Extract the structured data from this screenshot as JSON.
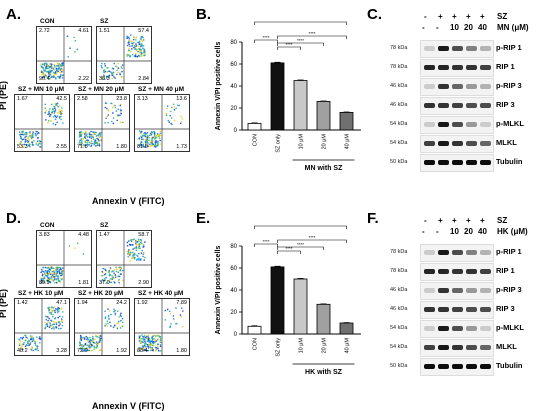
{
  "panels": {
    "A": {
      "letter": "A.",
      "ylabel": "PI (PE)",
      "xlabel": "Annexin V (FITC)",
      "plots": [
        {
          "title": "CON",
          "q": [
            "2.72",
            "4.61",
            "90.4",
            "2.22"
          ]
        },
        {
          "title": "SZ",
          "q": [
            "1.51",
            "57.4",
            "38.3",
            "2.84"
          ]
        },
        {
          "title": "SZ + MN 10 μM",
          "q": [
            "1.67",
            "42.5",
            "53.3",
            "2.55"
          ]
        },
        {
          "title": "SZ + MN 20 μM",
          "q": [
            "2.58",
            "23.8",
            "71.8",
            "1.80"
          ]
        },
        {
          "title": "SZ + MN 40 μM",
          "q": [
            "3.13",
            "13.6",
            "81.5",
            "1.73"
          ]
        }
      ]
    },
    "D": {
      "letter": "D.",
      "ylabel": "PI (PE)",
      "xlabel": "Annexin V (FITC)",
      "plots": [
        {
          "title": "CON",
          "q": [
            "3.83",
            "4.48",
            "89.9",
            "1.81"
          ]
        },
        {
          "title": "SZ",
          "q": [
            "1.47",
            "58.7",
            "37.0",
            "2.90"
          ]
        },
        {
          "title": "SZ + HK 10 μM",
          "q": [
            "1.42",
            "47.1",
            "48.2",
            "3.28"
          ]
        },
        {
          "title": "SZ + HK 20 μM",
          "q": [
            "1.94",
            "24.2",
            "72.0",
            "1.92"
          ]
        },
        {
          "title": "SZ + HK 40 μM",
          "q": [
            "1.92",
            "7.89",
            "88.4",
            "1.80"
          ]
        }
      ]
    },
    "B": {
      "letter": "B.",
      "group_label": "MN with SZ",
      "sig": [
        "****",
        "****",
        "****",
        "****",
        "****"
      ]
    },
    "E": {
      "letter": "E.",
      "group_label": "HK with SZ",
      "sig": [
        "****",
        "****",
        "****",
        "****",
        "****"
      ]
    },
    "C": {
      "letter": "C.",
      "treat": "MN (μM)"
    },
    "F": {
      "letter": "F.",
      "treat": "HK (μM)"
    }
  },
  "blot_header": {
    "sz": "SZ",
    "signs": [
      "-",
      "+",
      "+",
      "+",
      "+"
    ],
    "signs2": [
      "-",
      "-",
      "10",
      "20",
      "40"
    ]
  },
  "blot_rows": [
    {
      "kda": "78 kDa",
      "label": "p-RIP 1"
    },
    {
      "kda": "78 kDa",
      "label": "RIP 1"
    },
    {
      "kda": "46 kDa",
      "label": "p-RIP 3"
    },
    {
      "kda": "46 kDa",
      "label": "RIP 3"
    },
    {
      "kda": "54 kDa",
      "label": "p-MLKL"
    },
    {
      "kda": "54 kDa",
      "label": "MLKL"
    },
    {
      "kda": "50 kDa",
      "label": "Tubulin"
    }
  ],
  "chart_data": [
    {
      "type": "bar",
      "panel": "B",
      "categories": [
        "CON",
        "SZ only",
        "10 μM",
        "20 μM",
        "40 μM"
      ],
      "values": [
        6,
        61,
        45,
        26,
        16
      ],
      "errors": [
        0.5,
        0.6,
        0.5,
        0.4,
        0.4
      ],
      "colors": [
        "#ffffff",
        "#111111",
        "#c8c8c8",
        "#a0a0a0",
        "#707070"
      ],
      "ylabel": "Annexin V/PI positive cells",
      "ylim": [
        0,
        80
      ],
      "yticks": [
        0,
        20,
        40,
        60,
        80
      ]
    },
    {
      "type": "bar",
      "panel": "E",
      "categories": [
        "CON",
        "SZ only",
        "10 μM",
        "20 μM",
        "40 μM"
      ],
      "values": [
        7,
        61,
        50,
        27,
        10
      ],
      "errors": [
        0.5,
        0.6,
        0.6,
        0.4,
        0.4
      ],
      "colors": [
        "#ffffff",
        "#111111",
        "#c8c8c8",
        "#a0a0a0",
        "#707070"
      ],
      "ylabel": "Annexin V/PI positive cells",
      "ylim": [
        0,
        80
      ],
      "yticks": [
        0,
        20,
        40,
        60,
        80
      ]
    }
  ]
}
